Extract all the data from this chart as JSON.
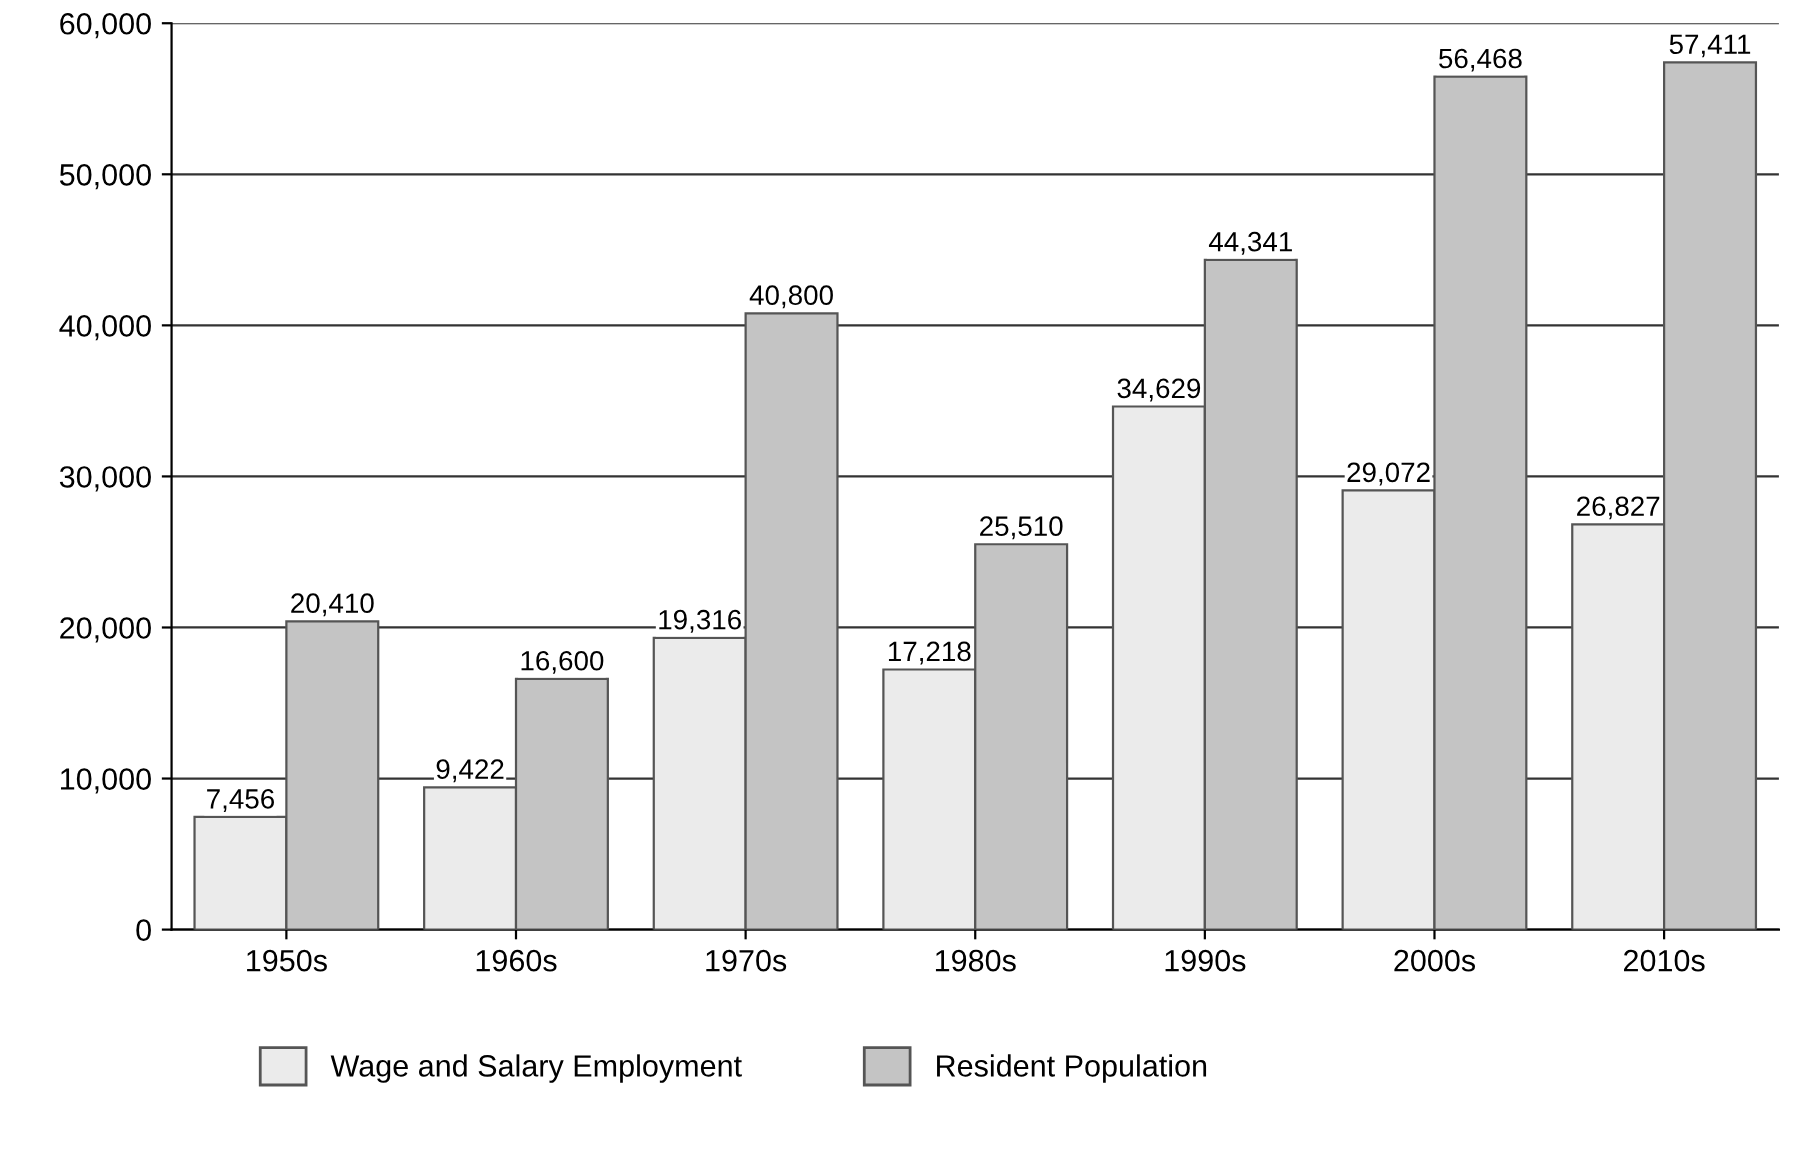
{
  "chart_data": {
    "type": "bar",
    "categories": [
      "1950s",
      "1960s",
      "1970s",
      "1980s",
      "1990s",
      "2000s",
      "2010s"
    ],
    "series": [
      {
        "name": "Wage and Salary Employment",
        "color": "#ebebeb",
        "values": [
          7456,
          9422,
          19316,
          17218,
          34629,
          29072,
          26827
        ],
        "value_labels": [
          "7,456",
          "9,422",
          "19,316",
          "17,218",
          "34,629",
          "29,072",
          "26,827"
        ]
      },
      {
        "name": "Resident Population",
        "color": "#c4c4c4",
        "values": [
          20410,
          16600,
          40800,
          25510,
          44341,
          56468,
          57411
        ],
        "value_labels": [
          "20,410",
          "16,600",
          "40,800",
          "25,510",
          "44,341",
          "56,468",
          "57,411"
        ]
      }
    ],
    "ylim": [
      0,
      60000
    ],
    "yticks": [
      {
        "value": 0,
        "label": "0"
      },
      {
        "value": 10000,
        "label": "10,000"
      },
      {
        "value": 20000,
        "label": "20,000"
      },
      {
        "value": 30000,
        "label": "30,000"
      },
      {
        "value": 40000,
        "label": "40,000"
      },
      {
        "value": 50000,
        "label": "50,000"
      },
      {
        "value": 60000,
        "label": "60,000"
      }
    ],
    "grid": "y",
    "legend": "bottom"
  }
}
